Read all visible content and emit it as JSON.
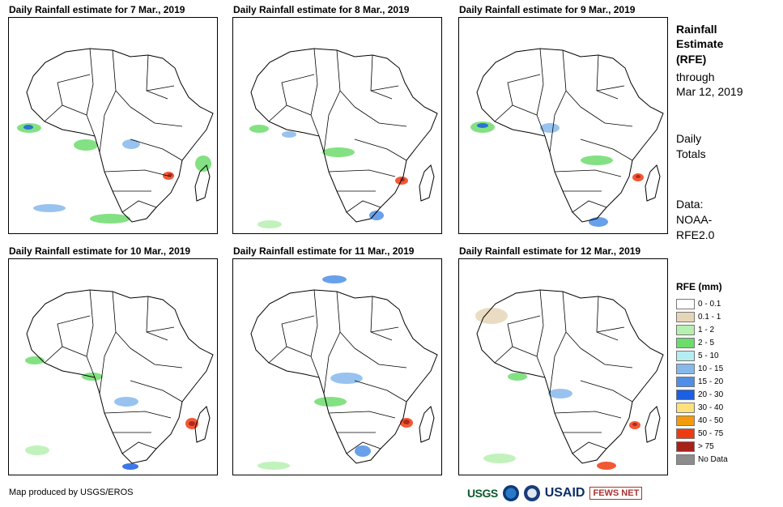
{
  "panels": [
    {
      "title": "Daily Rainfall estimate for 7 Mar., 2019",
      "day": 7
    },
    {
      "title": "Daily Rainfall estimate for 8 Mar., 2019",
      "day": 8
    },
    {
      "title": "Daily Rainfall estimate for 9 Mar., 2019",
      "day": 9
    },
    {
      "title": "Daily Rainfall estimate for 10 Mar., 2019",
      "day": 10
    },
    {
      "title": "Daily Rainfall estimate for 11 Mar., 2019",
      "day": 11
    },
    {
      "title": "Daily Rainfall estimate for 12 Mar., 2019",
      "day": 12
    }
  ],
  "sidebar": {
    "title_line1": "Rainfall",
    "title_line2": "Estimate",
    "title_line3": "(RFE)",
    "through": "through",
    "date": "Mar 12, 2019",
    "daily": "Daily",
    "totals": "Totals",
    "data_label": "Data:",
    "data_source1": "NOAA-",
    "data_source2": "RFE2.0"
  },
  "legend": {
    "title": "RFE (mm)",
    "items": [
      {
        "label": "0 - 0.1",
        "color": "#ffffff"
      },
      {
        "label": "0.1 - 1",
        "color": "#e6d6b8"
      },
      {
        "label": "1 - 2",
        "color": "#b6f0b0"
      },
      {
        "label": "2 - 5",
        "color": "#6ddc6d"
      },
      {
        "label": "5 - 10",
        "color": "#b4eef2"
      },
      {
        "label": "10 - 15",
        "color": "#86b8ec"
      },
      {
        "label": "15 - 20",
        "color": "#4f8fe6"
      },
      {
        "label": "20 - 30",
        "color": "#1c5fe0"
      },
      {
        "label": "30 - 40",
        "color": "#fde17d"
      },
      {
        "label": "40 - 50",
        "color": "#f29b0c"
      },
      {
        "label": "50 - 75",
        "color": "#ee3c12"
      },
      {
        "label": "> 75",
        "color": "#a8201a"
      },
      {
        "label": "No Data",
        "color": "#8c8c8c"
      }
    ]
  },
  "credit": "Map produced by USGS/EROS",
  "logos": {
    "usgs": "USGS",
    "usaid": "USAID",
    "fews": "FEWS NET"
  }
}
